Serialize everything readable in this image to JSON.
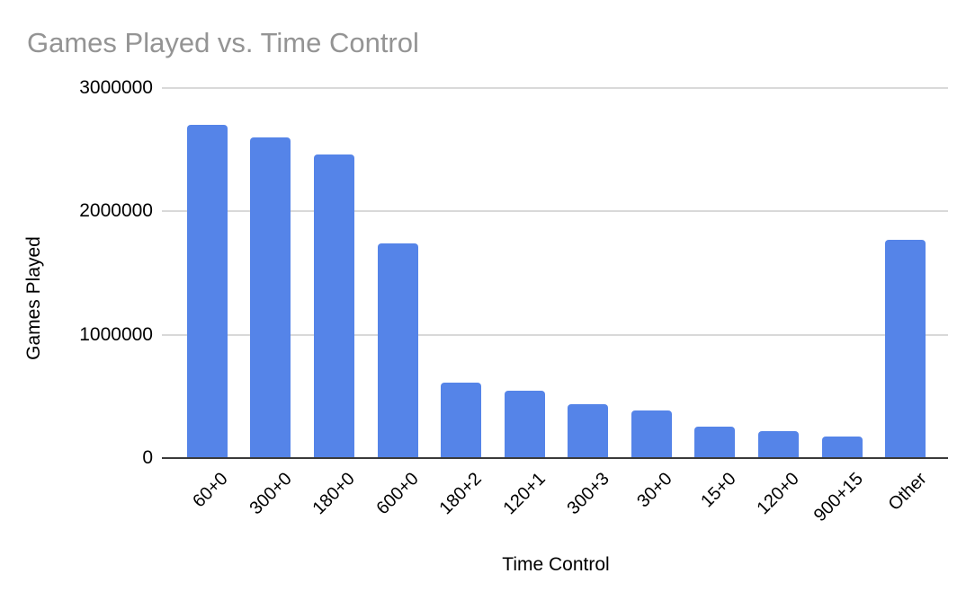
{
  "chart_data": {
    "type": "bar",
    "title": "Games Played vs. Time Control",
    "xlabel": "Time Control",
    "ylabel": "Games Played",
    "categories": [
      "60+0",
      "300+0",
      "180+0",
      "600+0",
      "180+2",
      "120+1",
      "300+3",
      "30+0",
      "15+0",
      "120+0",
      "900+15",
      "Other"
    ],
    "values": [
      2700000,
      2600000,
      2460000,
      1740000,
      610000,
      545000,
      440000,
      385000,
      255000,
      215000,
      175000,
      1770000
    ],
    "ylim": [
      0,
      3000000
    ],
    "yticks": [
      0,
      1000000,
      2000000,
      3000000
    ],
    "ytick_labels": [
      "0",
      "1000000",
      "2000000",
      "3000000"
    ],
    "grid": true,
    "legend_position": "none",
    "bar_color": "#5584E8",
    "gridline_color": "#d9d9d9",
    "axis_line_color": "#3a3a3a",
    "title_color": "#949494",
    "label_color": "#000000"
  }
}
